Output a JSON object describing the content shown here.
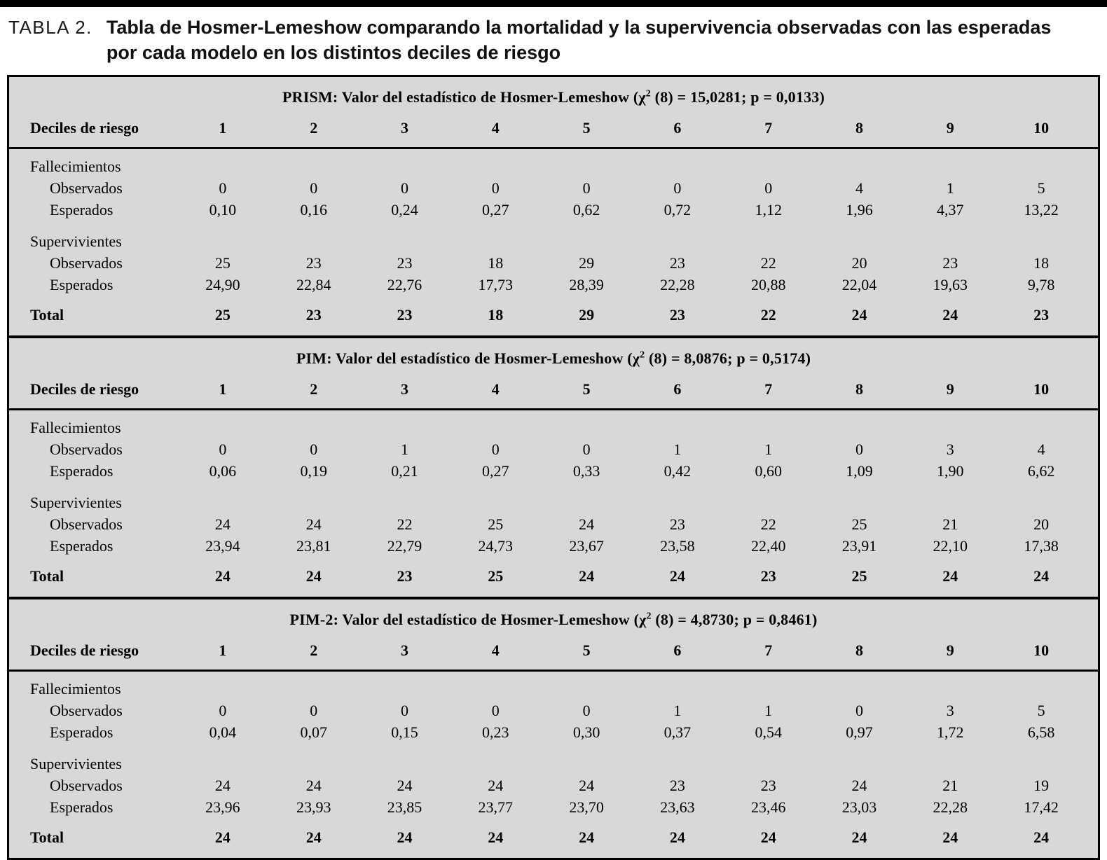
{
  "caption": {
    "label": "TABLA 2.",
    "title_line1": "Tabla de Hosmer-Lemeshow comparando la mortalidad y la supervivencia observadas con las esperadas",
    "title_line2": "por cada modelo en los distintos deciles de riesgo"
  },
  "colors": {
    "table_background": "#d8d8d8",
    "border": "#000000",
    "page_background": "#ffffff"
  },
  "table": {
    "deciles_label": "Deciles de riesgo",
    "decile_columns": [
      "1",
      "2",
      "3",
      "4",
      "5",
      "6",
      "7",
      "8",
      "9",
      "10"
    ],
    "row_labels": {
      "fallecimientos": "Fallecimientos",
      "supervivientes": "Supervivientes",
      "observados": "Observados",
      "esperados": "Esperados",
      "total": "Total"
    },
    "sections": [
      {
        "id": "prism",
        "header_pre": "PRISM: Valor del estadístico de Hosmer-Lemeshow (χ",
        "header_sup": "2",
        "header_post": " (8) = 15,0281; p = 0,0133)",
        "fallecimientos": {
          "observados": [
            "0",
            "0",
            "0",
            "0",
            "0",
            "0",
            "0",
            "4",
            "1",
            "5"
          ],
          "esperados": [
            "0,10",
            "0,16",
            "0,24",
            "0,27",
            "0,62",
            "0,72",
            "1,12",
            "1,96",
            "4,37",
            "13,22"
          ]
        },
        "supervivientes": {
          "observados": [
            "25",
            "23",
            "23",
            "18",
            "29",
            "23",
            "22",
            "20",
            "23",
            "18"
          ],
          "esperados": [
            "24,90",
            "22,84",
            "22,76",
            "17,73",
            "28,39",
            "22,28",
            "20,88",
            "22,04",
            "19,63",
            "9,78"
          ]
        },
        "total": [
          "25",
          "23",
          "23",
          "18",
          "29",
          "23",
          "22",
          "24",
          "24",
          "23"
        ]
      },
      {
        "id": "pim",
        "header_pre": "PIM: Valor del estadístico de Hosmer-Lemeshow (χ",
        "header_sup": "2",
        "header_post": " (8) = 8,0876; p = 0,5174)",
        "fallecimientos": {
          "observados": [
            "0",
            "0",
            "1",
            "0",
            "0",
            "1",
            "1",
            "0",
            "3",
            "4"
          ],
          "esperados": [
            "0,06",
            "0,19",
            "0,21",
            "0,27",
            "0,33",
            "0,42",
            "0,60",
            "1,09",
            "1,90",
            "6,62"
          ]
        },
        "supervivientes": {
          "observados": [
            "24",
            "24",
            "22",
            "25",
            "24",
            "23",
            "22",
            "25",
            "21",
            "20"
          ],
          "esperados": [
            "23,94",
            "23,81",
            "22,79",
            "24,73",
            "23,67",
            "23,58",
            "22,40",
            "23,91",
            "22,10",
            "17,38"
          ]
        },
        "total": [
          "24",
          "24",
          "23",
          "25",
          "24",
          "24",
          "23",
          "25",
          "24",
          "24"
        ]
      },
      {
        "id": "pim2",
        "header_pre": "PIM-2: Valor del estadístico de Hosmer-Lemeshow (χ",
        "header_sup": "2",
        "header_post": " (8) = 4,8730; p = 0,8461)",
        "fallecimientos": {
          "observados": [
            "0",
            "0",
            "0",
            "0",
            "0",
            "1",
            "1",
            "0",
            "3",
            "5"
          ],
          "esperados": [
            "0,04",
            "0,07",
            "0,15",
            "0,23",
            "0,30",
            "0,37",
            "0,54",
            "0,97",
            "1,72",
            "6,58"
          ]
        },
        "supervivientes": {
          "observados": [
            "24",
            "24",
            "24",
            "24",
            "24",
            "23",
            "23",
            "24",
            "21",
            "19"
          ],
          "esperados": [
            "23,96",
            "23,93",
            "23,85",
            "23,77",
            "23,70",
            "23,63",
            "23,46",
            "23,03",
            "22,28",
            "17,42"
          ]
        },
        "total": [
          "24",
          "24",
          "24",
          "24",
          "24",
          "24",
          "24",
          "24",
          "24",
          "24"
        ]
      }
    ]
  }
}
